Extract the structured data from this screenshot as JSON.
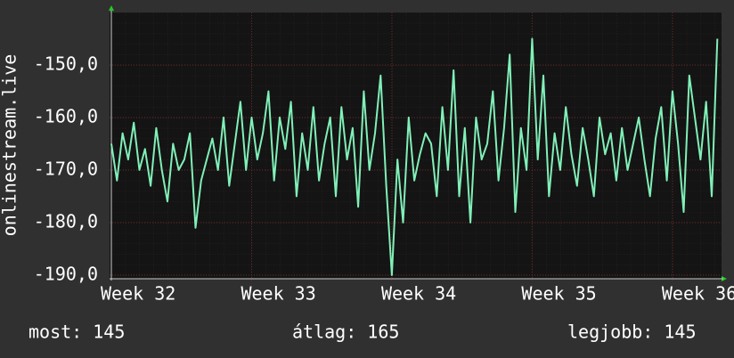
{
  "chart_data": {
    "type": "line",
    "y_label": "onlinestream.live",
    "x": [
      32,
      32.04,
      32.08,
      32.12,
      32.16,
      32.2,
      32.24,
      32.28,
      32.32,
      32.36,
      32.4,
      32.44,
      32.48,
      32.52,
      32.56,
      32.6,
      32.64,
      32.68,
      32.72,
      32.76,
      32.8,
      32.84,
      32.88,
      32.92,
      32.96,
      33,
      33.04,
      33.08,
      33.12,
      33.16,
      33.2,
      33.24,
      33.28,
      33.32,
      33.36,
      33.4,
      33.44,
      33.48,
      33.52,
      33.56,
      33.6,
      33.64,
      33.68,
      33.72,
      33.76,
      33.8,
      33.84,
      33.88,
      33.92,
      33.96,
      34,
      34.04,
      34.08,
      34.12,
      34.16,
      34.2,
      34.24,
      34.28,
      34.32,
      34.36,
      34.4,
      34.44,
      34.48,
      34.52,
      34.56,
      34.6,
      34.64,
      34.68,
      34.72,
      34.76,
      34.8,
      34.84,
      34.88,
      34.92,
      34.96,
      35,
      35.04,
      35.08,
      35.12,
      35.16,
      35.2,
      35.24,
      35.28,
      35.32,
      35.36,
      35.4,
      35.44,
      35.48,
      35.52,
      35.56,
      35.6,
      35.64,
      35.68,
      35.72,
      35.76,
      35.8,
      35.84,
      35.88,
      35.92,
      35.96,
      36,
      36.04,
      36.08,
      36.12,
      36.16,
      36.2,
      36.24,
      36.28,
      36.32
    ],
    "series": [
      {
        "color": "#80f0b8",
        "values": [
          -165,
          -172,
          -163,
          -168,
          -161,
          -170,
          -166,
          -173,
          -162,
          -170,
          -176,
          -165,
          -170,
          -168,
          -163,
          -181,
          -172,
          -168,
          -164,
          -170,
          -160,
          -173,
          -165,
          -157,
          -170,
          -160,
          -168,
          -163,
          -155,
          -172,
          -160,
          -166,
          -157,
          -175,
          -163,
          -170,
          -158,
          -172,
          -165,
          -160,
          -175,
          -158,
          -168,
          -162,
          -177,
          -155,
          -170,
          -163,
          -152,
          -173,
          -190,
          -168,
          -180,
          -160,
          -172,
          -167,
          -163,
          -165,
          -175,
          -158,
          -170,
          -151,
          -175,
          -162,
          -180,
          -160,
          -168,
          -165,
          -155,
          -172,
          -162,
          -148,
          -178,
          -162,
          -170,
          -145,
          -168,
          -152,
          -175,
          -163,
          -170,
          -158,
          -167,
          -173,
          -162,
          -168,
          -175,
          -160,
          -167,
          -163,
          -172,
          -162,
          -170,
          -165,
          -160,
          -168,
          -175,
          -164,
          -158,
          -172,
          -155,
          -165,
          -178,
          -152,
          -160,
          -168,
          -157,
          -175,
          -145
        ]
      }
    ],
    "xlim": [
      32,
      36.35
    ],
    "xticks": [
      {
        "value": 32,
        "label": "Week 32"
      },
      {
        "value": 33,
        "label": "Week 33"
      },
      {
        "value": 34,
        "label": "Week 34"
      },
      {
        "value": 35,
        "label": "Week 35"
      },
      {
        "value": 36,
        "label": "Week 36"
      }
    ],
    "ylim": [
      -190.7,
      -140
    ],
    "yticks": [
      {
        "value": -190,
        "label": "-190,0"
      },
      {
        "value": -180,
        "label": "-180,0"
      },
      {
        "value": -170,
        "label": "-170,0"
      },
      {
        "value": -160,
        "label": "-160,0"
      },
      {
        "value": -150,
        "label": "-150,0"
      }
    ],
    "grid": true,
    "annotations": [
      "most: 145",
      "átlag: 165",
      "legjobb: 145"
    ]
  }
}
